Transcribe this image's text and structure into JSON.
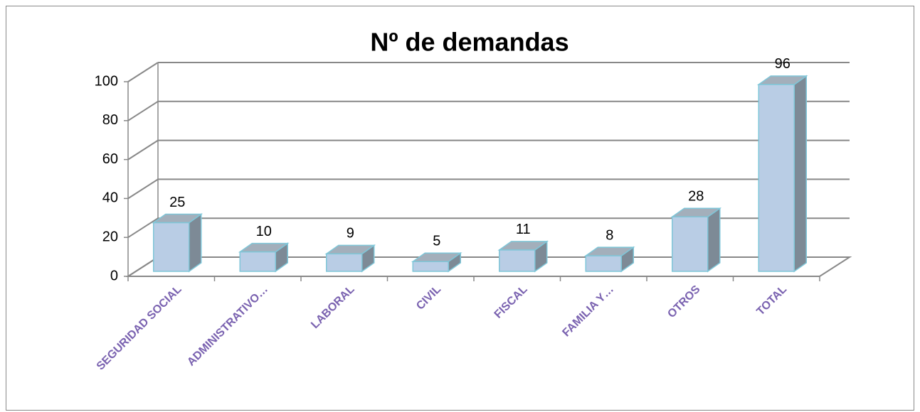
{
  "chart_data": {
    "type": "bar3d",
    "title": "Nº de demandas",
    "categories": [
      "SEGURIDAD SOCIAL",
      "ADMINISTRATIVO…",
      "LABORAL",
      "CIVIL",
      "FISCAL",
      "FAMILIA Y…",
      "OTROS",
      "TOTAL"
    ],
    "values": [
      25,
      10,
      9,
      5,
      11,
      8,
      28,
      96
    ],
    "color": "#b9cde5",
    "ylim": [
      0,
      100
    ],
    "yticks": [
      0,
      20,
      40,
      60,
      80,
      100
    ],
    "grid": true
  }
}
